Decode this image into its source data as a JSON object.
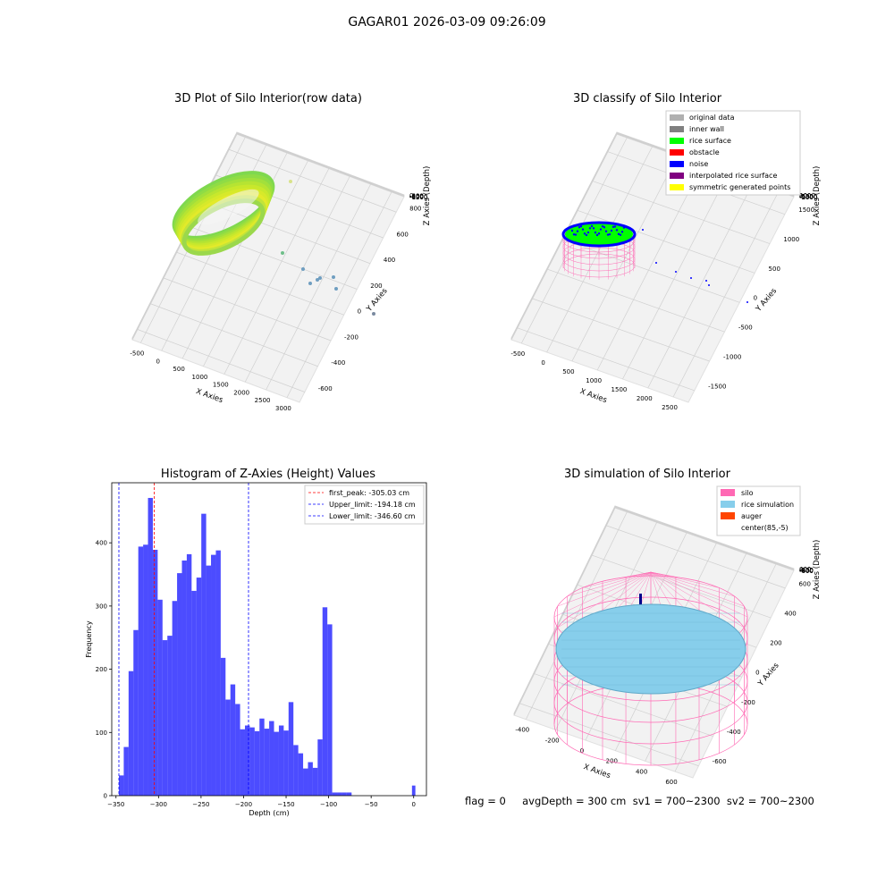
{
  "figure": {
    "suptitle": "GAGAR01 2026-03-09 09:26:09",
    "status_line": "flag = 0     avgDepth = 300 cm  sv1 = 700~2300  sv2 = 700~2300"
  },
  "panels": {
    "raw": {
      "title": "3D Plot of Silo Interior(row data)",
      "xlabel": "X Axies",
      "ylabel": "Y Axies",
      "zlabel": "Z Axies (Depth)",
      "xticks": [
        "-500",
        "0",
        "500",
        "1000",
        "1500",
        "2000",
        "2500",
        "3000"
      ],
      "yticks": [
        "800",
        "600",
        "400",
        "200",
        "0",
        "-200",
        "-400",
        "-600"
      ],
      "zticks": [
        "0",
        "-200",
        "-400",
        "-600",
        "-800",
        "-1000",
        "-1200"
      ]
    },
    "classify": {
      "title": "3D classify of Silo Interior",
      "xlabel": "X Axies",
      "ylabel": "Y Axies",
      "zlabel": "Z Axies (Depth)",
      "xticks": [
        "-500",
        "0",
        "500",
        "1000",
        "1500",
        "2000",
        "2500"
      ],
      "yticks": [
        "1500",
        "1000",
        "500",
        "0",
        "-500",
        "-1000",
        "-1500"
      ],
      "zticks": [
        "1000",
        "500",
        "0",
        "-500",
        "-1000",
        "-1500",
        "-2000"
      ],
      "legend": [
        {
          "label": "original data",
          "color": "#b0b0b0"
        },
        {
          "label": "inner wall",
          "color": "#808080"
        },
        {
          "label": "rice surface",
          "color": "#00ff00"
        },
        {
          "label": "obstacle",
          "color": "#ff0000"
        },
        {
          "label": "noise",
          "color": "#0000ff"
        },
        {
          "label": "interpolated rice surface",
          "color": "#800080"
        },
        {
          "label": "symmetric generated points",
          "color": "#ffff00"
        }
      ]
    },
    "simulation": {
      "title": "3D simulation of Silo Interior",
      "xlabel": "X Axies",
      "ylabel": "Y Axies",
      "zlabel": "Z Axies (Depth)",
      "xticks": [
        "-400",
        "-200",
        "0",
        "200",
        "400",
        "600"
      ],
      "yticks": [
        "600",
        "400",
        "200",
        "0",
        "-200",
        "-400",
        "-600"
      ],
      "zticks": [
        "400",
        "200",
        "0",
        "-200",
        "-400",
        "-600",
        "-800"
      ],
      "legend": [
        {
          "label": "silo",
          "color": "#ff69b4"
        },
        {
          "label": "rice simulation",
          "color": "#87ceeb"
        },
        {
          "label": "auger",
          "color": "#ff4500"
        },
        {
          "label": "center(85,-5)",
          "color": "#ffffff"
        }
      ]
    }
  },
  "chart_data": {
    "type": "bar",
    "title": "Histogram of Z-Axies (Height) Values",
    "xlabel": "Depth (cm)",
    "ylabel": "Frequency",
    "xlim": [
      -355,
      15
    ],
    "ylim": [
      0,
      495
    ],
    "xticks": [
      -350,
      -300,
      -250,
      -200,
      -150,
      -100,
      -50,
      0
    ],
    "yticks": [
      0,
      100,
      200,
      300,
      400
    ],
    "bar_color": "#0000ff",
    "bins": [
      {
        "x0": -346.6,
        "x1": -340.9,
        "count": 32
      },
      {
        "x0": -340.9,
        "x1": -335.2,
        "count": 77
      },
      {
        "x0": -335.2,
        "x1": -329.5,
        "count": 197
      },
      {
        "x0": -329.5,
        "x1": -323.8,
        "count": 262
      },
      {
        "x0": -323.8,
        "x1": -318.1,
        "count": 394
      },
      {
        "x0": -318.1,
        "x1": -312.4,
        "count": 397
      },
      {
        "x0": -312.4,
        "x1": -306.7,
        "count": 471
      },
      {
        "x0": -306.7,
        "x1": -301.0,
        "count": 389
      },
      {
        "x0": -301.0,
        "x1": -295.3,
        "count": 310
      },
      {
        "x0": -295.3,
        "x1": -289.6,
        "count": 246
      },
      {
        "x0": -289.6,
        "x1": -283.9,
        "count": 253
      },
      {
        "x0": -283.9,
        "x1": -278.2,
        "count": 308
      },
      {
        "x0": -278.2,
        "x1": -272.5,
        "count": 352
      },
      {
        "x0": -272.5,
        "x1": -266.8,
        "count": 372
      },
      {
        "x0": -266.8,
        "x1": -261.1,
        "count": 382
      },
      {
        "x0": -261.1,
        "x1": -255.4,
        "count": 324
      },
      {
        "x0": -255.4,
        "x1": -249.7,
        "count": 345
      },
      {
        "x0": -249.7,
        "x1": -244.0,
        "count": 446
      },
      {
        "x0": -244.0,
        "x1": -238.3,
        "count": 364
      },
      {
        "x0": -238.3,
        "x1": -232.6,
        "count": 381
      },
      {
        "x0": -232.6,
        "x1": -226.9,
        "count": 388
      },
      {
        "x0": -226.9,
        "x1": -221.2,
        "count": 218
      },
      {
        "x0": -221.2,
        "x1": -215.5,
        "count": 152
      },
      {
        "x0": -215.5,
        "x1": -209.8,
        "count": 176
      },
      {
        "x0": -209.8,
        "x1": -204.1,
        "count": 145
      },
      {
        "x0": -204.1,
        "x1": -198.4,
        "count": 105
      },
      {
        "x0": -198.4,
        "x1": -192.7,
        "count": 111
      },
      {
        "x0": -192.7,
        "x1": -187.0,
        "count": 108
      },
      {
        "x0": -187.0,
        "x1": -181.3,
        "count": 102
      },
      {
        "x0": -181.3,
        "x1": -175.6,
        "count": 122
      },
      {
        "x0": -175.6,
        "x1": -169.9,
        "count": 106
      },
      {
        "x0": -169.9,
        "x1": -164.2,
        "count": 118
      },
      {
        "x0": -164.2,
        "x1": -158.5,
        "count": 101
      },
      {
        "x0": -158.5,
        "x1": -152.8,
        "count": 111
      },
      {
        "x0": -152.8,
        "x1": -147.1,
        "count": 103
      },
      {
        "x0": -147.1,
        "x1": -141.4,
        "count": 148
      },
      {
        "x0": -141.4,
        "x1": -135.7,
        "count": 80
      },
      {
        "x0": -135.7,
        "x1": -130.0,
        "count": 67
      },
      {
        "x0": -130.0,
        "x1": -124.3,
        "count": 43
      },
      {
        "x0": -124.3,
        "x1": -118.6,
        "count": 53
      },
      {
        "x0": -118.6,
        "x1": -112.9,
        "count": 44
      },
      {
        "x0": -112.9,
        "x1": -107.2,
        "count": 89
      },
      {
        "x0": -107.2,
        "x1": -101.5,
        "count": 298
      },
      {
        "x0": -101.5,
        "x1": -95.8,
        "count": 271
      },
      {
        "x0": -95.8,
        "x1": -90.1,
        "count": 5
      },
      {
        "x0": -90.1,
        "x1": -84.4,
        "count": 5
      },
      {
        "x0": -84.4,
        "x1": -78.7,
        "count": 5
      },
      {
        "x0": -78.7,
        "x1": -73.0,
        "count": 5
      },
      {
        "x0": -2.0,
        "x1": 2.0,
        "count": 16
      }
    ],
    "vlines": [
      {
        "label": "first_peak: -305.03 cm",
        "value": -305.03,
        "color": "#ff0000"
      },
      {
        "label": "Upper_limit: -194.18 cm",
        "value": -194.18,
        "color": "#0000ff"
      },
      {
        "label": "Lower_limit: -346.60 cm",
        "value": -346.6,
        "color": "#0000ff"
      }
    ],
    "legend_position": "upper right"
  }
}
